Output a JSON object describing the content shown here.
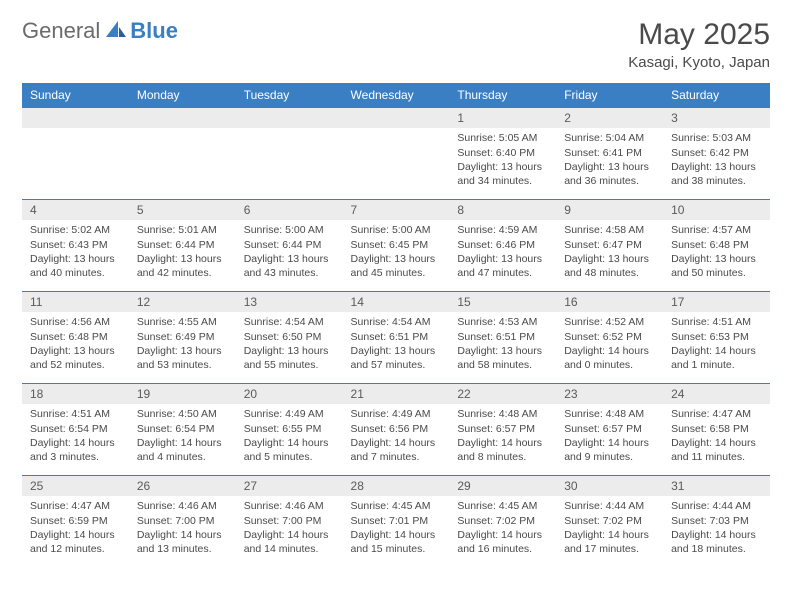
{
  "brand": {
    "text_general": "General",
    "text_blue": "Blue"
  },
  "title": {
    "month": "May 2025",
    "location": "Kasagi, Kyoto, Japan"
  },
  "colors": {
    "header_bg": "#3a7fc4",
    "header_text": "#ffffff",
    "daynum_bg": "#ececec",
    "border": "#3a7fc4",
    "body_text": "#4a4a4a",
    "logo_gray": "#6b6b6b",
    "logo_blue": "#3a7fc4",
    "page_bg": "#ffffff"
  },
  "typography": {
    "month_title_size": 30,
    "location_size": 15,
    "weekday_size": 12,
    "daynum_size": 12,
    "content_size": 10.5
  },
  "weekdays": [
    "Sunday",
    "Monday",
    "Tuesday",
    "Wednesday",
    "Thursday",
    "Friday",
    "Saturday"
  ],
  "grid": [
    [
      null,
      null,
      null,
      null,
      {
        "n": "1",
        "sr": "5:05 AM",
        "ss": "6:40 PM",
        "dl": "13 hours and 34 minutes."
      },
      {
        "n": "2",
        "sr": "5:04 AM",
        "ss": "6:41 PM",
        "dl": "13 hours and 36 minutes."
      },
      {
        "n": "3",
        "sr": "5:03 AM",
        "ss": "6:42 PM",
        "dl": "13 hours and 38 minutes."
      }
    ],
    [
      {
        "n": "4",
        "sr": "5:02 AM",
        "ss": "6:43 PM",
        "dl": "13 hours and 40 minutes."
      },
      {
        "n": "5",
        "sr": "5:01 AM",
        "ss": "6:44 PM",
        "dl": "13 hours and 42 minutes."
      },
      {
        "n": "6",
        "sr": "5:00 AM",
        "ss": "6:44 PM",
        "dl": "13 hours and 43 minutes."
      },
      {
        "n": "7",
        "sr": "5:00 AM",
        "ss": "6:45 PM",
        "dl": "13 hours and 45 minutes."
      },
      {
        "n": "8",
        "sr": "4:59 AM",
        "ss": "6:46 PM",
        "dl": "13 hours and 47 minutes."
      },
      {
        "n": "9",
        "sr": "4:58 AM",
        "ss": "6:47 PM",
        "dl": "13 hours and 48 minutes."
      },
      {
        "n": "10",
        "sr": "4:57 AM",
        "ss": "6:48 PM",
        "dl": "13 hours and 50 minutes."
      }
    ],
    [
      {
        "n": "11",
        "sr": "4:56 AM",
        "ss": "6:48 PM",
        "dl": "13 hours and 52 minutes."
      },
      {
        "n": "12",
        "sr": "4:55 AM",
        "ss": "6:49 PM",
        "dl": "13 hours and 53 minutes."
      },
      {
        "n": "13",
        "sr": "4:54 AM",
        "ss": "6:50 PM",
        "dl": "13 hours and 55 minutes."
      },
      {
        "n": "14",
        "sr": "4:54 AM",
        "ss": "6:51 PM",
        "dl": "13 hours and 57 minutes."
      },
      {
        "n": "15",
        "sr": "4:53 AM",
        "ss": "6:51 PM",
        "dl": "13 hours and 58 minutes."
      },
      {
        "n": "16",
        "sr": "4:52 AM",
        "ss": "6:52 PM",
        "dl": "14 hours and 0 minutes."
      },
      {
        "n": "17",
        "sr": "4:51 AM",
        "ss": "6:53 PM",
        "dl": "14 hours and 1 minute."
      }
    ],
    [
      {
        "n": "18",
        "sr": "4:51 AM",
        "ss": "6:54 PM",
        "dl": "14 hours and 3 minutes."
      },
      {
        "n": "19",
        "sr": "4:50 AM",
        "ss": "6:54 PM",
        "dl": "14 hours and 4 minutes."
      },
      {
        "n": "20",
        "sr": "4:49 AM",
        "ss": "6:55 PM",
        "dl": "14 hours and 5 minutes."
      },
      {
        "n": "21",
        "sr": "4:49 AM",
        "ss": "6:56 PM",
        "dl": "14 hours and 7 minutes."
      },
      {
        "n": "22",
        "sr": "4:48 AM",
        "ss": "6:57 PM",
        "dl": "14 hours and 8 minutes."
      },
      {
        "n": "23",
        "sr": "4:48 AM",
        "ss": "6:57 PM",
        "dl": "14 hours and 9 minutes."
      },
      {
        "n": "24",
        "sr": "4:47 AM",
        "ss": "6:58 PM",
        "dl": "14 hours and 11 minutes."
      }
    ],
    [
      {
        "n": "25",
        "sr": "4:47 AM",
        "ss": "6:59 PM",
        "dl": "14 hours and 12 minutes."
      },
      {
        "n": "26",
        "sr": "4:46 AM",
        "ss": "7:00 PM",
        "dl": "14 hours and 13 minutes."
      },
      {
        "n": "27",
        "sr": "4:46 AM",
        "ss": "7:00 PM",
        "dl": "14 hours and 14 minutes."
      },
      {
        "n": "28",
        "sr": "4:45 AM",
        "ss": "7:01 PM",
        "dl": "14 hours and 15 minutes."
      },
      {
        "n": "29",
        "sr": "4:45 AM",
        "ss": "7:02 PM",
        "dl": "14 hours and 16 minutes."
      },
      {
        "n": "30",
        "sr": "4:44 AM",
        "ss": "7:02 PM",
        "dl": "14 hours and 17 minutes."
      },
      {
        "n": "31",
        "sr": "4:44 AM",
        "ss": "7:03 PM",
        "dl": "14 hours and 18 minutes."
      }
    ]
  ],
  "labels": {
    "sunrise": "Sunrise:",
    "sunset": "Sunset:",
    "daylight": "Daylight:"
  }
}
